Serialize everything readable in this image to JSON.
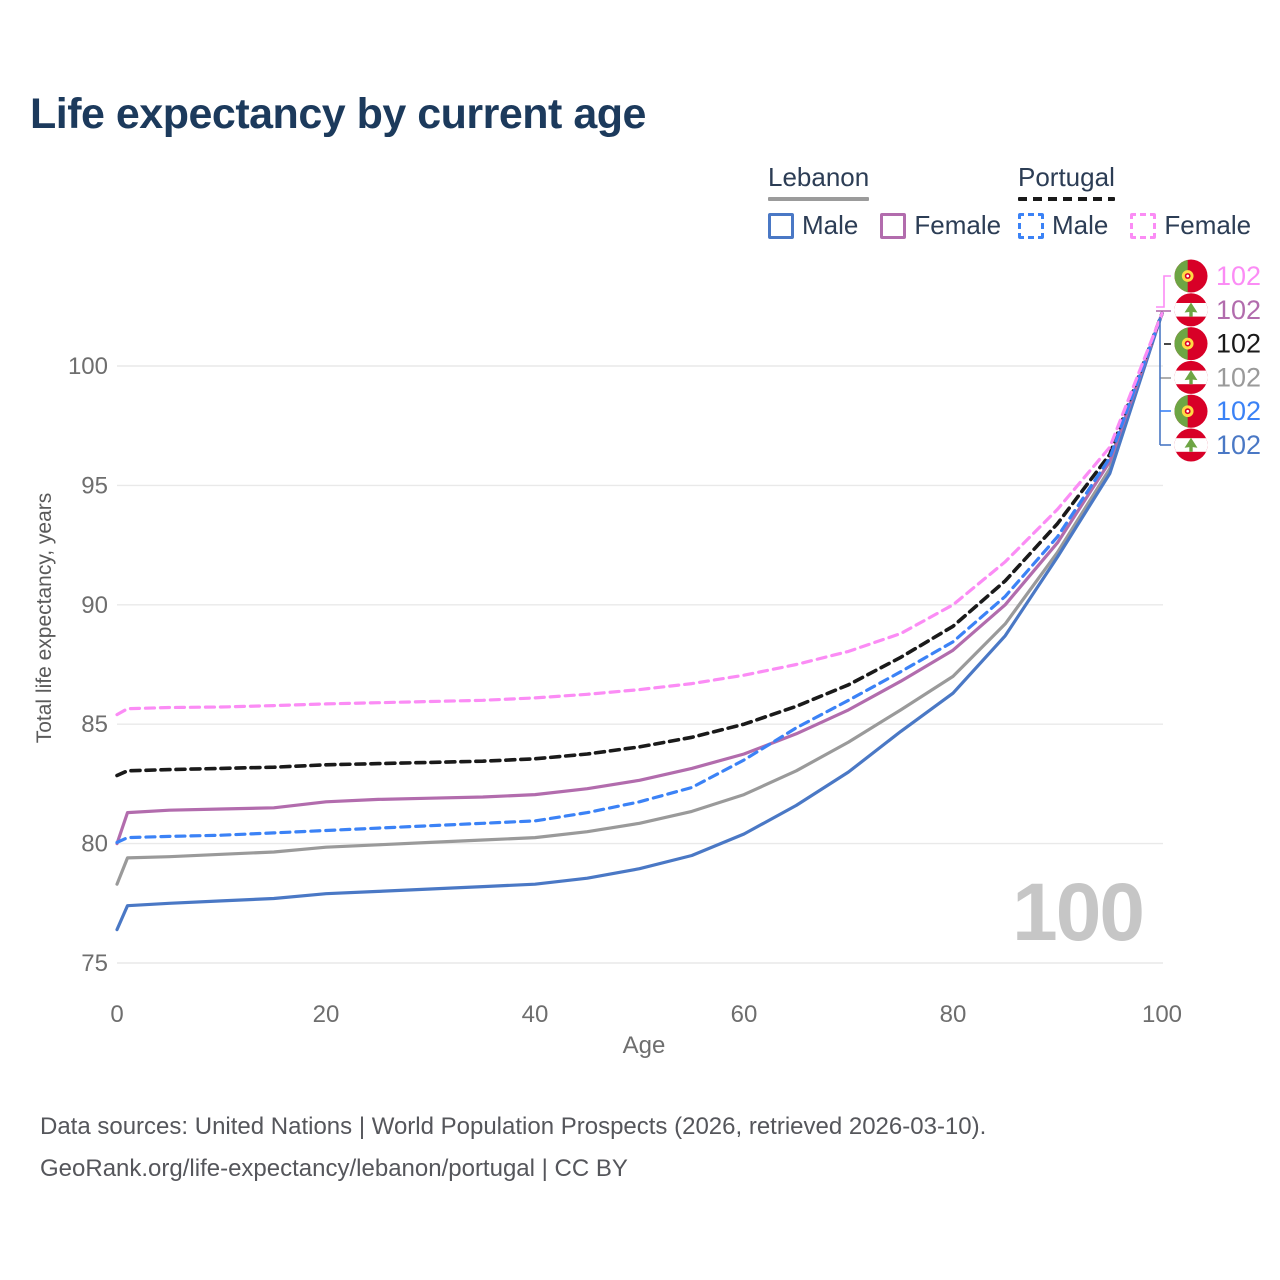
{
  "title": "Life expectancy by current age",
  "age_indicator": "100",
  "legend": {
    "groups": [
      {
        "name": "Lebanon",
        "line_style": "solid",
        "underline_color": "#9b9b9b",
        "items": [
          {
            "label": "Male",
            "series": "lebanon-male"
          },
          {
            "label": "Female",
            "series": "lebanon-female"
          }
        ]
      },
      {
        "name": "Portugal",
        "line_style": "dashed",
        "underline_color": "#1a1a1a",
        "items": [
          {
            "label": "Male",
            "series": "portugal-male"
          },
          {
            "label": "Female",
            "series": "portugal-female"
          }
        ]
      }
    ]
  },
  "footer": {
    "line1": "Data sources: United Nations | World Population Prospects (2026, retrieved 2026-03-10).",
    "line2": "GeoRank.org/life-expectancy/lebanon/portugal | CC BY"
  },
  "chart_data": {
    "type": "line",
    "title": "Life expectancy by current age",
    "xlabel": "Age",
    "ylabel": "Total life expectancy, years",
    "x_ticks": [
      0,
      20,
      40,
      60,
      80,
      100
    ],
    "y_ticks": [
      75,
      80,
      85,
      90,
      95,
      100
    ],
    "xlim": [
      0,
      100
    ],
    "ylim": [
      74.5,
      103
    ],
    "grid": "horizontal",
    "legend_position": "top-right",
    "ages": [
      0,
      1,
      5,
      10,
      15,
      20,
      25,
      30,
      35,
      40,
      45,
      50,
      55,
      60,
      65,
      70,
      75,
      80,
      85,
      90,
      95,
      100
    ],
    "series": [
      {
        "id": "lebanon-all",
        "country": "Lebanon",
        "sex": "Both",
        "line": "solid",
        "color": "#9a9a9a",
        "end_label": "102",
        "values": [
          78.3,
          79.4,
          79.45,
          79.55,
          79.65,
          79.85,
          79.95,
          80.05,
          80.15,
          80.25,
          80.5,
          80.85,
          81.35,
          82.05,
          83.05,
          84.25,
          85.6,
          87.0,
          89.2,
          92.2,
          95.7,
          102.2
        ]
      },
      {
        "id": "lebanon-male",
        "country": "Lebanon",
        "sex": "Male",
        "line": "solid",
        "color": "#4a78c5",
        "end_label": "102",
        "values": [
          76.4,
          77.4,
          77.5,
          77.6,
          77.7,
          77.9,
          78.0,
          78.1,
          78.2,
          78.3,
          78.55,
          78.95,
          79.5,
          80.4,
          81.6,
          83.0,
          84.7,
          86.3,
          88.7,
          92.0,
          95.5,
          102.2
        ]
      },
      {
        "id": "lebanon-female",
        "country": "Lebanon",
        "sex": "Female",
        "line": "solid",
        "color": "#b26cad",
        "end_label": "102",
        "values": [
          80.0,
          81.3,
          81.4,
          81.45,
          81.5,
          81.75,
          81.85,
          81.9,
          81.95,
          82.05,
          82.3,
          82.65,
          83.15,
          83.75,
          84.6,
          85.6,
          86.8,
          88.1,
          90.0,
          92.6,
          96.0,
          102.2
        ]
      },
      {
        "id": "portugal-all",
        "country": "Portugal",
        "sex": "Both",
        "line": "dashed",
        "color": "#1a1a1a",
        "end_label": "102",
        "values": [
          82.85,
          83.05,
          83.1,
          83.15,
          83.2,
          83.3,
          83.35,
          83.4,
          83.45,
          83.55,
          83.75,
          84.05,
          84.45,
          85.0,
          85.75,
          86.65,
          87.8,
          89.1,
          91.0,
          93.4,
          96.3,
          102.2
        ]
      },
      {
        "id": "portugal-male",
        "country": "Portugal",
        "sex": "Male",
        "line": "dashed",
        "color": "#3b82f6",
        "end_label": "102",
        "values": [
          80.05,
          80.25,
          80.3,
          80.35,
          80.45,
          80.55,
          80.65,
          80.75,
          80.85,
          80.95,
          81.3,
          81.75,
          82.35,
          83.5,
          84.85,
          86.0,
          87.2,
          88.45,
          90.35,
          92.85,
          96.15,
          102.2
        ]
      },
      {
        "id": "portugal-female",
        "country": "Portugal",
        "sex": "Female",
        "line": "dashed",
        "color": "#fb8cf5",
        "end_label": "102",
        "values": [
          85.4,
          85.65,
          85.7,
          85.72,
          85.78,
          85.85,
          85.9,
          85.95,
          86.0,
          86.1,
          86.25,
          86.45,
          86.7,
          87.05,
          87.5,
          88.05,
          88.8,
          90.0,
          91.8,
          94.0,
          96.6,
          102.2
        ]
      }
    ],
    "end_rows": [
      "portugal-female",
      "lebanon-female",
      "portugal-all",
      "lebanon-all",
      "portugal-male",
      "lebanon-male"
    ]
  }
}
